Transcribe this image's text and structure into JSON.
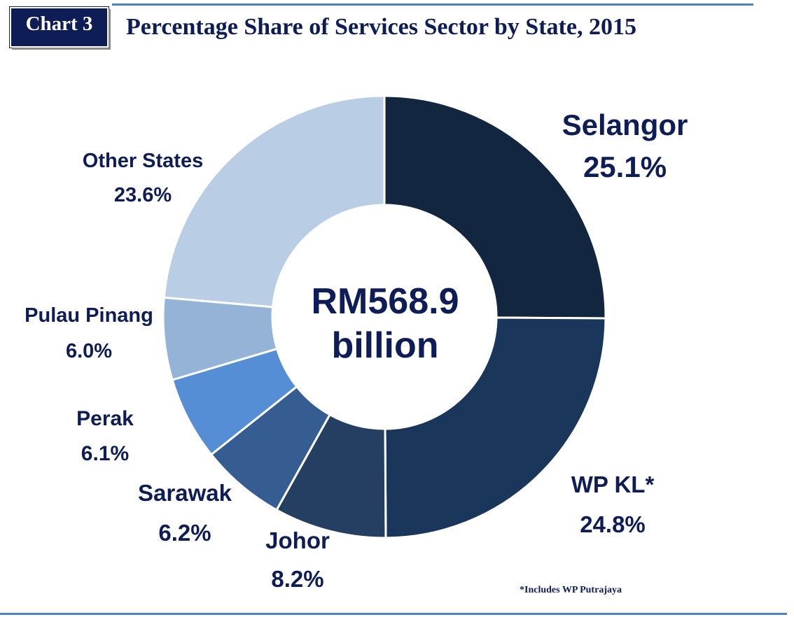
{
  "badge": "Chart 3",
  "title": "Percentage Share of Services Sector by State, 2015",
  "center_line1": "RM568.9",
  "center_line2": "billion",
  "footnote": "*Includes WP Putrajaya",
  "chart_data": {
    "type": "pie",
    "title": "Percentage Share of Services Sector by State, 2015",
    "center_label": "RM568.9 billion",
    "slices": [
      {
        "label": "Selangor",
        "value": 25.1,
        "display": "25.1%",
        "color": "#12263f"
      },
      {
        "label": "WP KL*",
        "value": 24.8,
        "display": "24.8%",
        "color": "#1a365b"
      },
      {
        "label": "Johor",
        "value": 8.2,
        "display": "8.2%",
        "color": "#253f63"
      },
      {
        "label": "Sarawak",
        "value": 6.2,
        "display": "6.2%",
        "color": "#355d91"
      },
      {
        "label": "Perak",
        "value": 6.1,
        "display": "6.1%",
        "color": "#558ed5"
      },
      {
        "label": "Pulau Pinang",
        "value": 6.0,
        "display": "6.0%",
        "color": "#95b3d7"
      },
      {
        "label": "Other States",
        "value": 23.6,
        "display": "23.6%",
        "color": "#b9cde5"
      }
    ]
  }
}
